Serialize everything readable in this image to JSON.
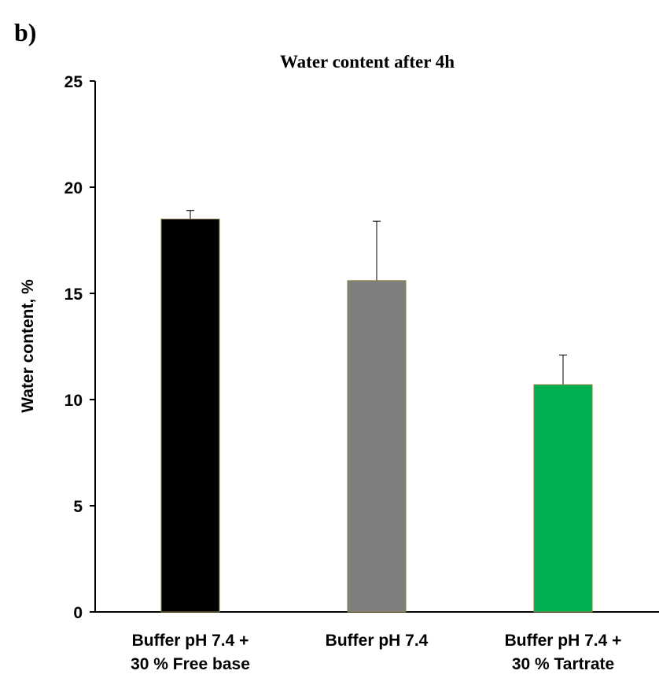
{
  "panel_label": "b)",
  "chart_data": {
    "type": "bar",
    "title": "Water content after 4h",
    "y_label": "Water content, %",
    "categories": [
      [
        "Buffer pH 7.4 +",
        "30 % Free base"
      ],
      [
        "Buffer pH 7.4"
      ],
      [
        "Buffer pH 7.4 +",
        "30 % Tartrate"
      ]
    ],
    "values": [
      18.5,
      15.6,
      10.7
    ],
    "errors": [
      0.4,
      2.8,
      1.4
    ],
    "colors": [
      "#000000",
      "#7f7f7f",
      "#00b050"
    ],
    "ylim": [
      0,
      25
    ],
    "yticks": [
      0,
      5,
      10,
      15,
      20,
      25
    ],
    "grid": false
  }
}
